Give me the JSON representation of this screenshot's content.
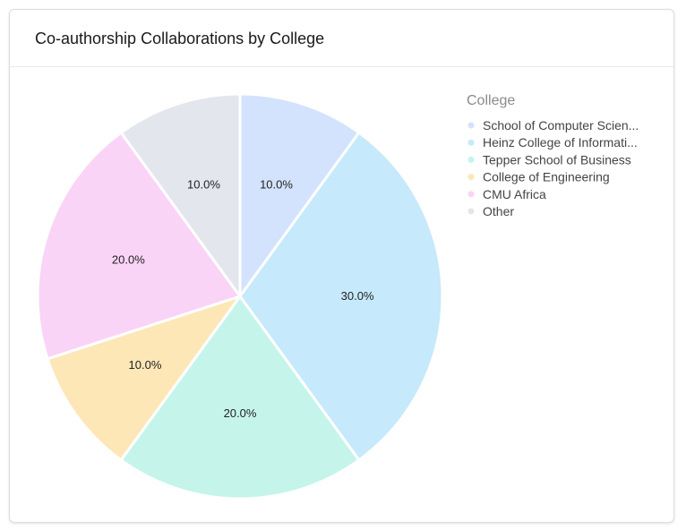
{
  "card": {
    "title": "Co-authorship Collaborations by College"
  },
  "chart_data": {
    "type": "pie",
    "legend_title": "College",
    "legend_position": "right",
    "slices": [
      {
        "label": "School of Computer Scien...",
        "value": 10.0,
        "color": "#d3e3fd"
      },
      {
        "label": "Heinz College of Informati...",
        "value": 30.0,
        "color": "#c6e9fb"
      },
      {
        "label": "Tepper School of Business",
        "value": 20.0,
        "color": "#c5f4eb"
      },
      {
        "label": "College of Engineering",
        "value": 10.0,
        "color": "#fde7b7"
      },
      {
        "label": "CMU Africa",
        "value": 20.0,
        "color": "#fad4f6"
      },
      {
        "label": "Other",
        "value": 10.0,
        "color": "#e3e6ec"
      }
    ],
    "data_labels": [
      "10.0%",
      "30.0%",
      "20.0%",
      "10.0%",
      "20.0%",
      "10.0%"
    ]
  }
}
